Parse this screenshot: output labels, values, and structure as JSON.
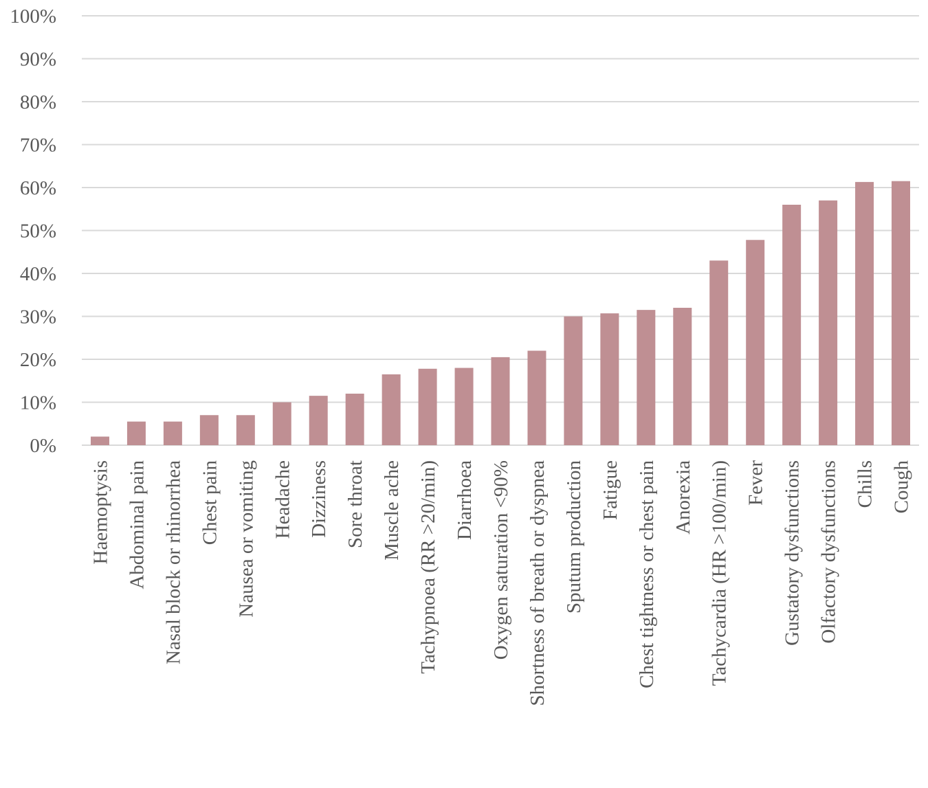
{
  "chart_data": {
    "type": "bar",
    "title": "",
    "xlabel": "",
    "ylabel": "",
    "ylim": [
      0,
      100
    ],
    "y_ticks": [
      "0%",
      "10%",
      "20%",
      "30%",
      "40%",
      "50%",
      "60%",
      "70%",
      "80%",
      "90%",
      "100%"
    ],
    "grid": true,
    "colors": {
      "bar": "#bf8f93",
      "grid": "#d9d9d9",
      "text": "#595959"
    },
    "categories": [
      "Haemoptysis",
      "Abdominal pain",
      "Nasal block or rhinorrhea",
      "Chest pain",
      "Nausea or vomiting",
      "Headache",
      "Dizziness",
      "Sore throat",
      "Muscle ache",
      "Tachypnoea (RR >20/min)",
      "Diarrhoea",
      "Oxygen saturation <90%",
      "Shortness of breath or dyspnea",
      "Sputum production",
      "Fatigue",
      "Chest tightness or chest pain",
      "Anorexia",
      "Tachycardia (HR >100/min)",
      "Fever",
      "Gustatory dysfunctions",
      "Olfactory dysfunctions",
      "Chills",
      "Cough"
    ],
    "values": [
      2,
      5.5,
      5.5,
      7,
      7,
      10,
      11.5,
      12,
      16.5,
      17.8,
      18,
      20.5,
      22,
      30,
      30.7,
      31.5,
      32,
      43,
      47.8,
      56,
      57,
      61.3,
      61.5
    ]
  }
}
